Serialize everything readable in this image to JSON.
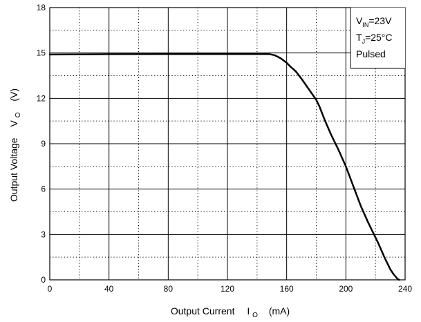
{
  "chart_data": {
    "type": "line",
    "xlabel": {
      "main": "Output Current",
      "symbol": "I",
      "sub": "O",
      "unit": "(mA)"
    },
    "ylabel": {
      "main": "Output Voltage",
      "symbol": "V",
      "sub": "O",
      "unit": "(V)"
    },
    "xlim": [
      0,
      240
    ],
    "ylim": [
      0,
      18
    ],
    "x_ticks": [
      0,
      40,
      80,
      120,
      160,
      200,
      240
    ],
    "y_ticks": [
      0,
      3,
      6,
      9,
      12,
      15,
      18
    ],
    "x_minor_ticks": [
      20,
      60,
      100,
      140,
      180,
      220
    ],
    "y_minor_ticks": [
      1.5,
      4.5,
      7.5,
      10.5,
      13.5,
      16.5
    ],
    "grid": {
      "major": "solid",
      "minor": "dotted"
    },
    "legend": {
      "lines": [
        {
          "main": "V",
          "sub": "IN",
          "rest": "=23V"
        },
        {
          "main": "T",
          "sub": "J",
          "rest": "=25°C"
        },
        {
          "main": "Pulsed",
          "sub": "",
          "rest": ""
        }
      ],
      "position": "top-right"
    },
    "series": [
      {
        "x": [
          0,
          40,
          80,
          120,
          148,
          152,
          156,
          160,
          162,
          166,
          170,
          175,
          180,
          182,
          186,
          190,
          195,
          200,
          205,
          210,
          215,
          220,
          222,
          226,
          230,
          232,
          235,
          236
        ],
        "y": [
          14.9,
          14.92,
          14.93,
          14.93,
          14.93,
          14.85,
          14.65,
          14.35,
          14.15,
          13.8,
          13.3,
          12.6,
          11.9,
          11.5,
          10.5,
          9.6,
          8.6,
          7.5,
          6.2,
          4.9,
          3.8,
          2.8,
          2.4,
          1.5,
          0.7,
          0.4,
          0.05,
          0
        ]
      }
    ]
  }
}
